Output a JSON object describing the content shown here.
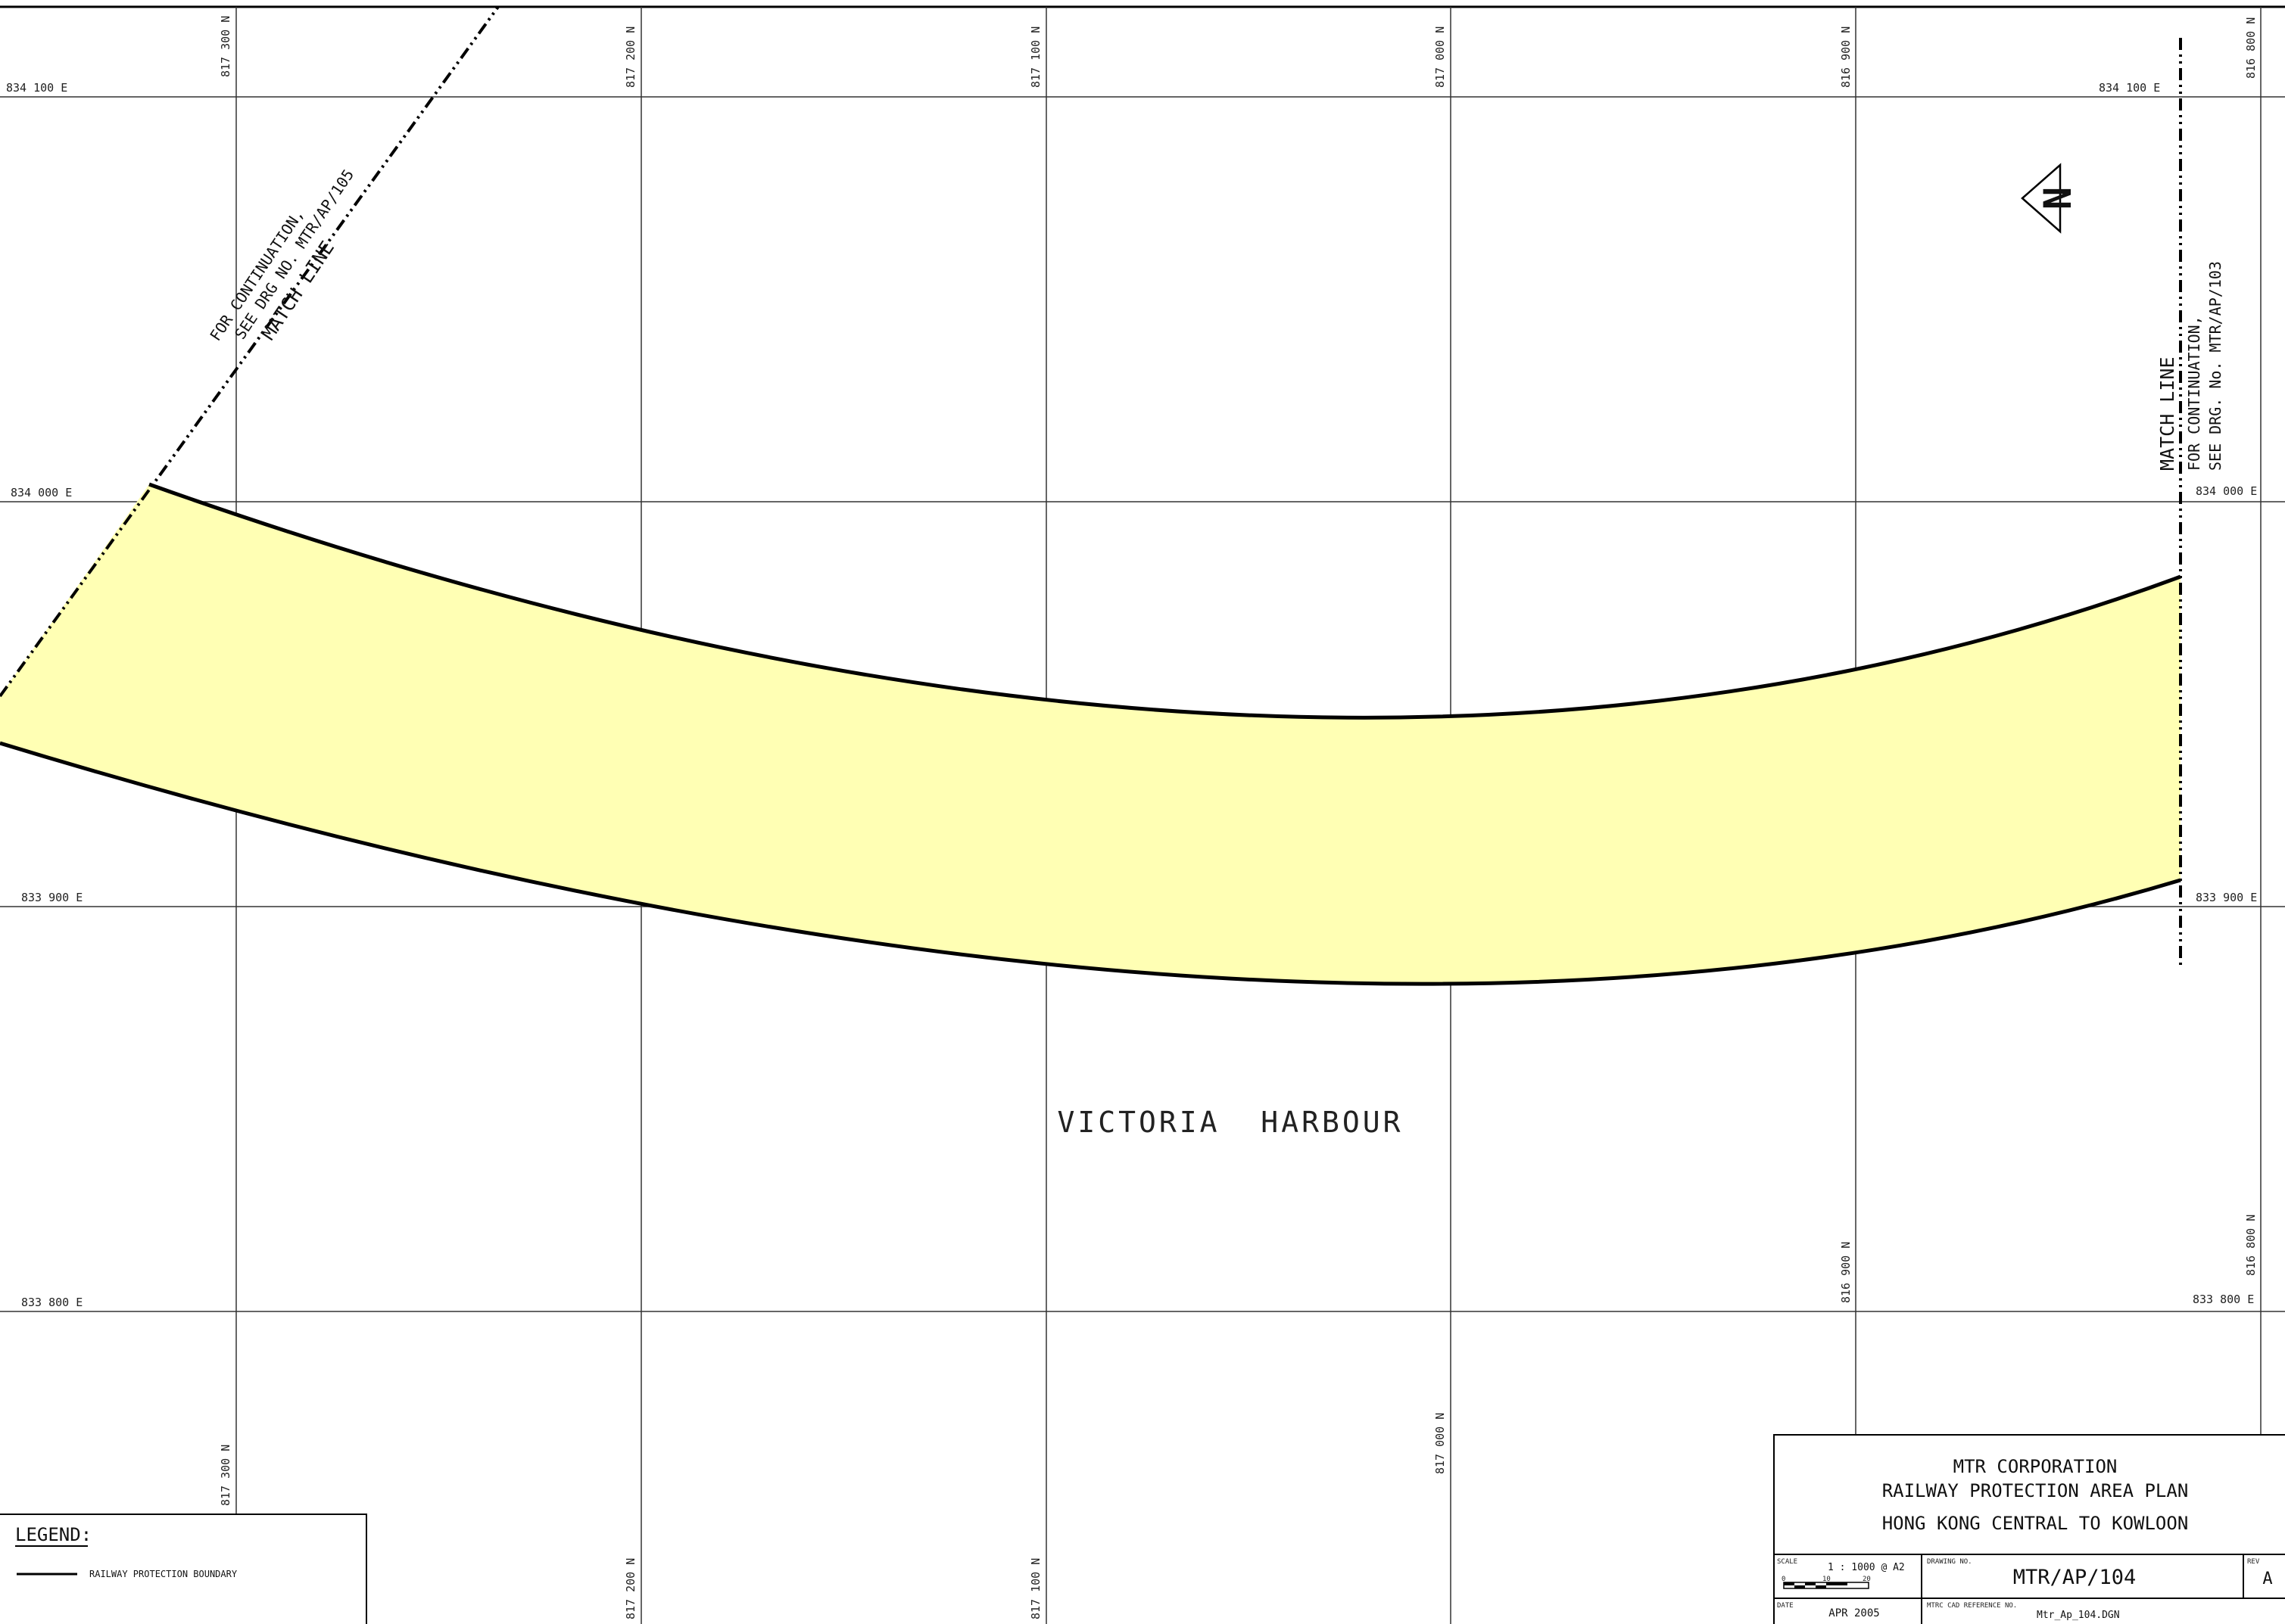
{
  "map": {
    "grid": {
      "easting_labels": [
        "834 100 E",
        "834 000 E",
        "833 900 E",
        "833 800 E"
      ],
      "northing_labels": [
        "817 300 N",
        "817 200 N",
        "817 100 N",
        "817 000 N",
        "816 900 N",
        "816 800 N"
      ]
    },
    "match_line_left": {
      "line1": "FOR CONTINUATION,",
      "line2": "SEE DRG NO. MTR/AP/105",
      "line3": "MATCH LINE"
    },
    "match_line_right": {
      "line1": "MATCH LINE",
      "line2": "FOR CONTINUATION,",
      "line3": "SEE DRG. No. MTR/AP/103"
    },
    "water_label": "VICTORIA  HARBOUR",
    "north_arrow_letter": "N",
    "area_fill_color": "#ffffb4"
  },
  "legend": {
    "title": "LEGEND:",
    "item_label": "RAILWAY PROTECTION BOUNDARY"
  },
  "title_block": {
    "organisation": "MTR CORPORATION",
    "plan_type": "RAILWAY PROTECTION AREA PLAN",
    "route": "HONG KONG CENTRAL TO KOWLOON",
    "scale_caption": "SCALE",
    "scale_value": "1 : 1000 @ A2",
    "scale_bar_ticks": [
      "0",
      "10",
      "20"
    ],
    "drawing_no_caption": "DRAWING NO.",
    "drawing_no": "MTR/AP/104",
    "rev_caption": "REV",
    "rev": "A",
    "date_caption": "DATE",
    "date": "APR 2005",
    "cad_ref_caption": "MTRC CAD REFERENCE NO.",
    "cad_ref": "Mtr_Ap_104.DGN"
  }
}
